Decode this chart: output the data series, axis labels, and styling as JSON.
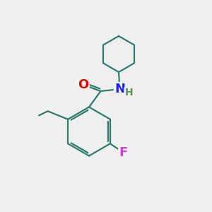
{
  "background_color": "#efefef",
  "bond_color": "#2d7d6e",
  "bond_width": 1.6,
  "atom_colors": {
    "O": "#dd0000",
    "N": "#2222ee",
    "F": "#cc44cc",
    "H": "#559955"
  },
  "font_size": 11
}
